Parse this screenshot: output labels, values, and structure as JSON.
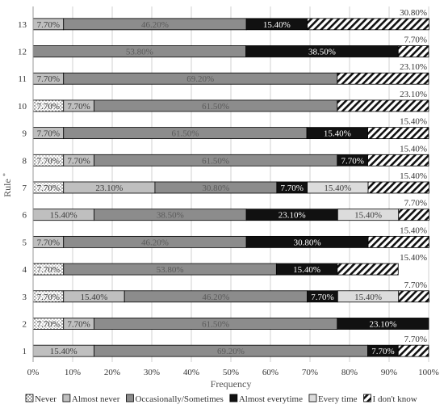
{
  "chart_data": {
    "type": "bar",
    "orientation": "horizontal",
    "stacked": true,
    "title": "",
    "xlabel": "Frequency",
    "ylabel": "Rule",
    "ylabel_suffix": "*",
    "xlim": [
      0,
      100
    ],
    "x_ticks": [
      "0%",
      "10%",
      "20%",
      "30%",
      "40%",
      "50%",
      "60%",
      "70%",
      "80%",
      "90%",
      "100%"
    ],
    "grid": "vertical",
    "legend_position": "bottom",
    "categories": [
      "1",
      "2",
      "3",
      "4",
      "5",
      "6",
      "7",
      "8",
      "9",
      "10",
      "11",
      "12",
      "13"
    ],
    "series": [
      {
        "name": "Never",
        "pattern": "dots",
        "color": "#ffffff",
        "values": [
          0,
          7.7,
          7.7,
          7.7,
          0,
          0,
          7.7,
          7.7,
          0,
          7.7,
          0,
          0,
          0
        ],
        "labels": [
          "",
          "7.70%",
          "7.70%",
          "7.70%",
          "",
          "",
          "7.70%",
          "7.70%",
          "",
          "7.70%",
          "",
          "",
          ""
        ]
      },
      {
        "name": "Almost never",
        "color": "#bfbfbf",
        "values": [
          15.4,
          7.7,
          15.4,
          0,
          7.7,
          15.4,
          23.1,
          7.7,
          7.7,
          7.7,
          7.7,
          0,
          7.7
        ],
        "labels": [
          "15.40%",
          "7.70%",
          "15.40%",
          "",
          "7.70%",
          "15.40%",
          "23.10%",
          "7.70%",
          "7.70%",
          "7.70%",
          "7.70%",
          "",
          "7.70%"
        ]
      },
      {
        "name": "Occasionally/Sometimes",
        "color": "#8c8c8c",
        "values": [
          69.2,
          61.5,
          46.2,
          53.8,
          46.2,
          38.5,
          30.8,
          61.5,
          61.5,
          61.5,
          69.2,
          53.8,
          46.2
        ],
        "labels": [
          "69.20%",
          "61.50%",
          "46.20%",
          "53.80%",
          "46.20%",
          "38.50%",
          "30.80%",
          "61.50%",
          "61.50%",
          "61.50%",
          "69.20%",
          "53.80%",
          "46.20%"
        ]
      },
      {
        "name": "Almost everytime",
        "color": "#111111",
        "values": [
          7.7,
          23.1,
          7.7,
          15.4,
          30.8,
          23.1,
          7.7,
          7.7,
          15.4,
          0,
          0,
          38.5,
          15.4
        ],
        "labels": [
          "7.70%",
          "23.10%",
          "7.70%",
          "15.40%",
          "30.80%",
          "23.10%",
          "7.70%",
          "7.70%",
          "15.40%",
          "",
          "",
          "38.50%",
          "15.40%"
        ]
      },
      {
        "name": "Every time",
        "color": "#dcdcdc",
        "values": [
          0,
          0,
          15.4,
          0,
          0,
          15.4,
          15.4,
          0,
          0,
          0,
          0,
          0,
          0
        ],
        "labels": [
          "",
          "",
          "15.40%",
          "",
          "",
          "15.40%",
          "15.40%",
          "",
          "",
          "",
          "",
          "",
          ""
        ]
      },
      {
        "name": "I don't know",
        "pattern": "diagonal",
        "color": "#ffffff",
        "values": [
          7.7,
          0,
          7.7,
          15.4,
          15.4,
          7.7,
          15.4,
          15.4,
          15.4,
          23.1,
          23.1,
          7.7,
          30.8
        ],
        "labels": [
          "7.70%",
          "",
          "7.70%",
          "15.40%",
          "15.40%",
          "7.70%",
          "15.40%",
          "15.40%",
          "15.40%",
          "23.10%",
          "23.10%",
          "7.70%",
          "30.80%"
        ]
      }
    ]
  }
}
